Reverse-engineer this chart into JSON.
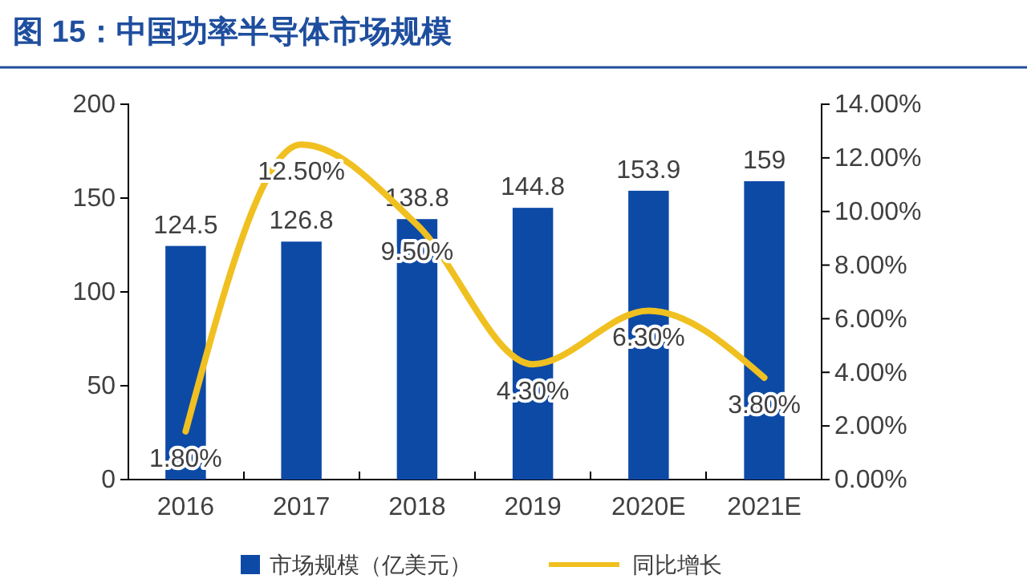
{
  "chart_data": {
    "type": "bar",
    "title": "图 15：中国功率半导体市场规模",
    "categories": [
      "2016",
      "2017",
      "2018",
      "2019",
      "2020E",
      "2021E"
    ],
    "series": [
      {
        "name": "市场规模（亿美元）",
        "color": "#0d4aa6",
        "values": [
          124.5,
          126.8,
          138.8,
          144.8,
          153.9,
          159
        ],
        "value_labels": [
          "124.5",
          "126.8",
          "138.8",
          "144.8",
          "153.9",
          "159"
        ]
      },
      {
        "name": "同比增长",
        "type": "line",
        "axis": "y2",
        "color": "#f0c020",
        "values": [
          1.8,
          12.5,
          9.5,
          4.3,
          6.3,
          3.8
        ],
        "value_labels": [
          "1.80%",
          "12.50%",
          "9.50%",
          "4.30%",
          "6.30%",
          "3.80%"
        ]
      }
    ],
    "ylim": [
      0,
      200
    ],
    "yticks": [
      0,
      50,
      100,
      150,
      200
    ],
    "y2lim": [
      0,
      14
    ],
    "y2ticks": [
      {
        "value": 0,
        "label": "0.00%"
      },
      {
        "value": 2,
        "label": "2.00%"
      },
      {
        "value": 4,
        "label": "4.00%"
      },
      {
        "value": 6,
        "label": "6.00%"
      },
      {
        "value": 8,
        "label": "8.00%"
      },
      {
        "value": 10,
        "label": "10.00%"
      },
      {
        "value": 12,
        "label": "12.00%"
      },
      {
        "value": 14,
        "label": "14.00%"
      }
    ],
    "legend": "bottom",
    "grid": false,
    "marker": "none",
    "line_style": "solid"
  }
}
